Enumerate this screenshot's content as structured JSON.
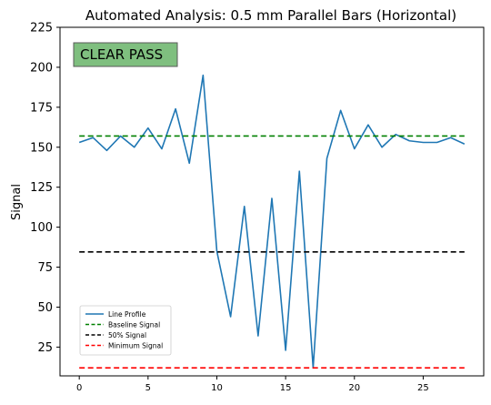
{
  "chart_data": {
    "type": "line",
    "title": "Automated Analysis: 0.5 mm Parallel Bars (Horizontal)",
    "xlabel": "",
    "ylabel": "Signal",
    "xlim": [
      -1.4,
      29.4
    ],
    "ylim": [
      7,
      225
    ],
    "xticks": [
      0,
      5,
      10,
      15,
      20,
      25
    ],
    "yticks": [
      25,
      50,
      75,
      100,
      125,
      150,
      175,
      200,
      225
    ],
    "grid": false,
    "legend_position": "lower-left",
    "badge": {
      "text": "CLEAR PASS",
      "fill": "#7fbf7f",
      "edge": "#5a5a5a"
    },
    "series": [
      {
        "name": "Line Profile",
        "style": "solid",
        "color": "#1f77b4",
        "x": [
          0,
          1,
          2,
          3,
          4,
          5,
          6,
          7,
          8,
          9,
          10,
          11,
          12,
          13,
          14,
          15,
          16,
          17,
          18,
          19,
          20,
          21,
          22,
          23,
          24,
          25,
          26,
          27,
          28
        ],
        "y": [
          153,
          156,
          148,
          157,
          150,
          162,
          149,
          174,
          140,
          195,
          85,
          44,
          113,
          32,
          118,
          23,
          135,
          12,
          143,
          173,
          149,
          164,
          150,
          158,
          154,
          153,
          153,
          156,
          152
        ]
      },
      {
        "name": "Baseline Signal",
        "style": "dashed",
        "color": "#008000",
        "y_const": 157,
        "x_range": [
          0,
          28
        ]
      },
      {
        "name": "50% Signal",
        "style": "dashed",
        "color": "#000000",
        "y_const": 84.5,
        "x_range": [
          0,
          28
        ]
      },
      {
        "name": "Minimum Signal",
        "style": "dashed",
        "color": "#ff0000",
        "y_const": 12,
        "x_range": [
          0,
          28
        ]
      }
    ]
  }
}
